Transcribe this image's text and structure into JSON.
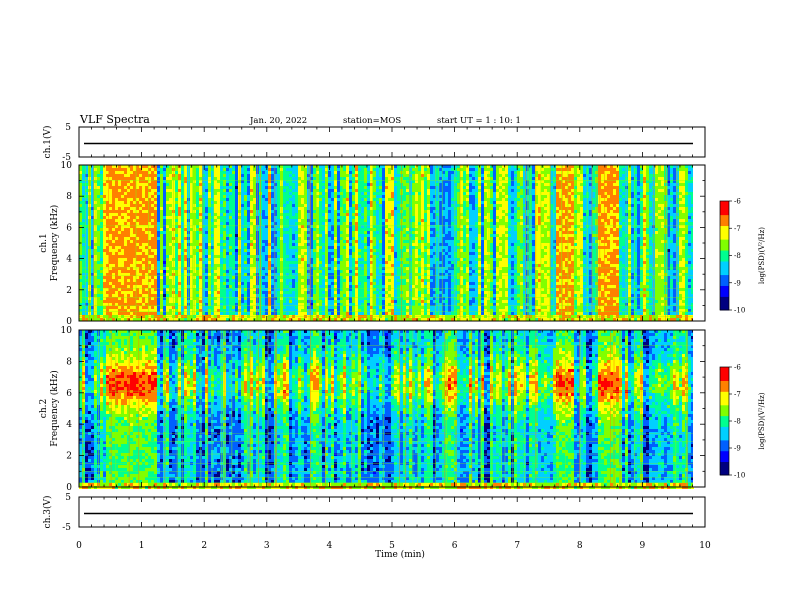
{
  "header": {
    "title": "VLF Spectra",
    "date": "Jan. 20, 2022",
    "station": "station=MOS",
    "start": "start UT =  1 : 10: 1"
  },
  "chart_data": [
    {
      "type": "line",
      "name": "ch1-waveform",
      "ylabel": "ch.1(V)",
      "ylim": [
        -5,
        5
      ],
      "yticks": [
        "5",
        "-5"
      ],
      "xlim": [
        0,
        10
      ],
      "baseline": -0.5
    },
    {
      "type": "heatmap",
      "name": "ch1-spectrogram",
      "ylabel": "ch.1\nFrequency (kHz)",
      "ylim": [
        0,
        10
      ],
      "yticks": [
        "0",
        "2",
        "4",
        "6",
        "8",
        "10"
      ],
      "xlim": [
        0,
        10
      ],
      "colorbar": {
        "label": "log(PSD)(V²/Hz)",
        "ticks": [
          "-6",
          "-7",
          "-8",
          "-9",
          "-10"
        ],
        "range": [
          -10,
          -6
        ]
      },
      "bursts": [
        [
          0.4,
          1.2
        ],
        [
          7.6,
          7.9
        ],
        [
          8.25,
          8.6
        ]
      ]
    },
    {
      "type": "heatmap",
      "name": "ch2-spectrogram",
      "ylabel": "ch.2\nFrequency (kHz)",
      "ylim": [
        0,
        10
      ],
      "yticks": [
        "0",
        "2",
        "4",
        "6",
        "8",
        "10"
      ],
      "xlim": [
        0,
        10
      ],
      "colorbar": {
        "label": "log(PSD)(V²/Hz)",
        "ticks": [
          "-6",
          "-7",
          "-8",
          "-9",
          "-10"
        ],
        "range": [
          -10,
          -6
        ]
      },
      "bursts": [
        [
          0.4,
          1.2
        ],
        [
          7.6,
          7.9
        ],
        [
          8.25,
          8.6
        ]
      ]
    },
    {
      "type": "line",
      "name": "ch3-waveform",
      "ylabel": "ch.3(V)",
      "ylim": [
        -5,
        5
      ],
      "yticks": [
        "5",
        "-5"
      ],
      "xlim": [
        0,
        10
      ],
      "baseline": -0.5
    }
  ],
  "xaxis": {
    "label": "Time (min)",
    "ticks": [
      "0",
      "1",
      "2",
      "3",
      "4",
      "5",
      "6",
      "7",
      "8",
      "9",
      "10"
    ]
  },
  "colors": {
    "background": "#000000",
    "cmap": [
      "#000080",
      "#0000ff",
      "#0060ff",
      "#00d0ff",
      "#00ff90",
      "#80ff00",
      "#ffff00",
      "#ff8000",
      "#ff0000",
      "#ffffff"
    ]
  }
}
